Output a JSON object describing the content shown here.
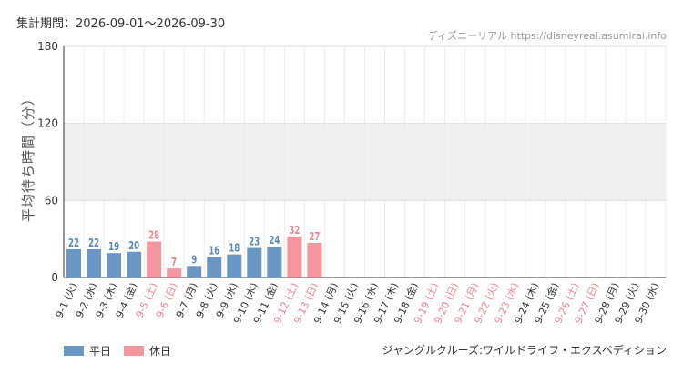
{
  "period_label": "集計期間：2026-09-01〜2026-09-30",
  "watermark": "ディズニーリアル https://disneyreal.asumirai.info",
  "attraction": "ジャングルクルーズ:ワイルドライフ・エクスペディション",
  "colors": {
    "weekday": "#6a96c4",
    "holiday": "#f4969b",
    "weekday_label": "#5b88b6",
    "holiday_label": "#e8878d",
    "band": "#f0f0f0"
  },
  "chart_data": {
    "type": "bar",
    "ylabel": "平均待ち時間（分）",
    "ylim": [
      0,
      180
    ],
    "yticks": [
      0,
      60,
      120,
      180
    ],
    "shaded_band": [
      60,
      120
    ],
    "categories": [
      "9-1 (火)",
      "9-2 (水)",
      "9-3 (木)",
      "9-4 (金)",
      "9-5 (土)",
      "9-6 (日)",
      "9-7 (月)",
      "9-8 (火)",
      "9-9 (水)",
      "9-10 (木)",
      "9-11 (金)",
      "9-12 (土)",
      "9-13 (日)",
      "9-14 (月)",
      "9-15 (火)",
      "9-16 (水)",
      "9-17 (木)",
      "9-18 (金)",
      "9-19 (土)",
      "9-20 (日)",
      "9-21 (月)",
      "9-22 (火)",
      "9-23 (水)",
      "9-24 (木)",
      "9-25 (金)",
      "9-26 (土)",
      "9-27 (日)",
      "9-28 (月)",
      "9-29 (火)",
      "9-30 (水)"
    ],
    "day_types": [
      "weekday",
      "weekday",
      "weekday",
      "weekday",
      "holiday",
      "holiday",
      "weekday",
      "weekday",
      "weekday",
      "weekday",
      "weekday",
      "holiday",
      "holiday",
      "weekday",
      "weekday",
      "weekday",
      "weekday",
      "weekday",
      "holiday",
      "holiday",
      "holiday",
      "holiday",
      "holiday",
      "weekday",
      "weekday",
      "holiday",
      "holiday",
      "weekday",
      "weekday",
      "weekday"
    ],
    "values": [
      22,
      22,
      19,
      20,
      28,
      7,
      9,
      16,
      18,
      23,
      24,
      32,
      27,
      null,
      null,
      null,
      null,
      null,
      null,
      null,
      null,
      null,
      null,
      null,
      null,
      null,
      null,
      null,
      null,
      null
    ],
    "legend": [
      {
        "key": "weekday",
        "label": "平日"
      },
      {
        "key": "holiday",
        "label": "休日"
      }
    ]
  }
}
